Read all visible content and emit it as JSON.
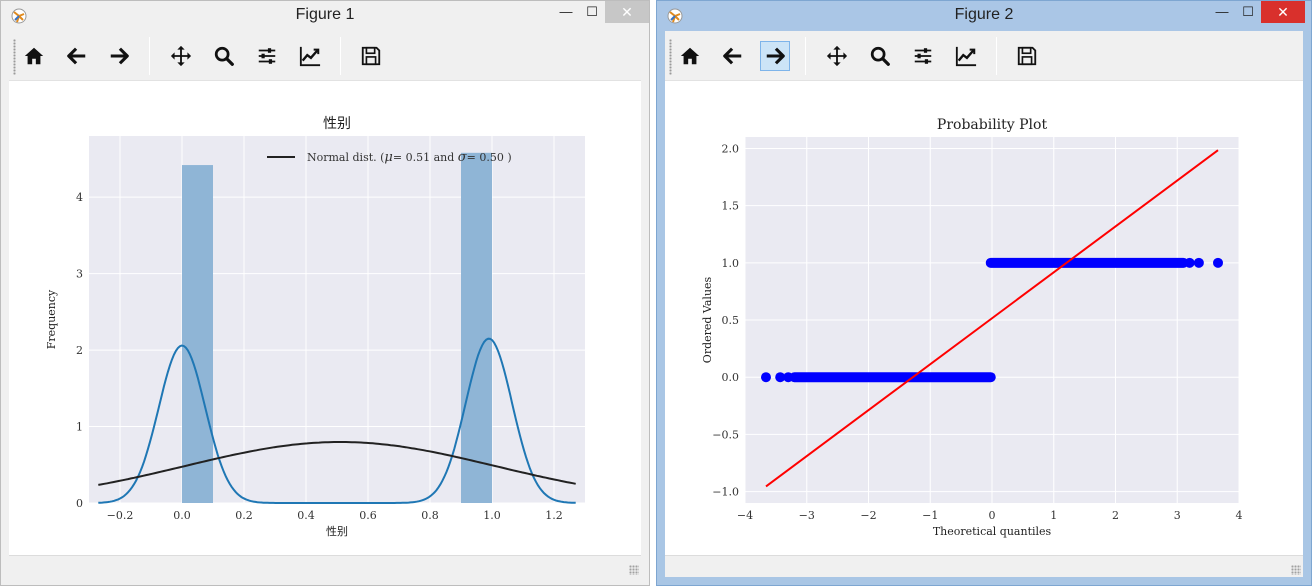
{
  "windows": [
    {
      "title": "Figure 1",
      "minimize": "—",
      "maximize": "☐",
      "close": "✕",
      "toolbar": [
        "home-icon",
        "back-arrow-icon",
        "forward-arrow-icon",
        "move-icon",
        "zoom-icon",
        "configure-subplots-icon",
        "edit-axes-icon",
        "save-icon"
      ],
      "active_tool": null
    },
    {
      "title": "Figure 2",
      "minimize": "—",
      "maximize": "☐",
      "close": "✕",
      "toolbar": [
        "home-icon",
        "back-arrow-icon",
        "forward-arrow-icon",
        "move-icon",
        "zoom-icon",
        "configure-subplots-icon",
        "edit-axes-icon",
        "save-icon"
      ],
      "active_tool": "forward-arrow-icon"
    }
  ],
  "chart_data": [
    {
      "type": "bar",
      "title": "性别",
      "xlabel": "性别",
      "ylabel": "Frequency",
      "xlim": [
        -0.3,
        1.3
      ],
      "ylim": [
        0,
        4.8
      ],
      "xticks": [
        -0.2,
        0.0,
        0.2,
        0.4,
        0.6,
        0.8,
        1.0,
        1.2
      ],
      "xtick_labels": [
        "−0.2",
        "0.0",
        "0.2",
        "0.4",
        "0.6",
        "0.8",
        "1.0",
        "1.2"
      ],
      "yticks": [
        0,
        1,
        2,
        3,
        4
      ],
      "ytick_labels": [
        "0",
        "1",
        "2",
        "3",
        "4"
      ],
      "grid": true,
      "legend": {
        "position": "top-right",
        "entries": [
          {
            "prefix": "Normal dist. (",
            "mu_sym": "μ",
            "eq1": "= 0.51 and ",
            "sigma_sym": "σ",
            "eq2": "= 0.50 )",
            "color": "#222222"
          }
        ]
      },
      "hist_bars": [
        {
          "x0": 0.0,
          "x1": 0.1,
          "height": 4.42
        },
        {
          "x0": 0.9,
          "x1": 1.0,
          "height": 4.58
        }
      ],
      "bar_color": "#8fb5d6",
      "kde": {
        "color": "#1f77b4",
        "components": [
          {
            "center": 0.0,
            "height": 2.06,
            "sigma": 0.075
          },
          {
            "center": 0.99,
            "height": 2.15,
            "sigma": 0.075
          }
        ],
        "x_range": [
          -0.27,
          1.27
        ]
      },
      "normal_fit": {
        "mu": 0.51,
        "sigma": 0.5,
        "color": "#222222",
        "x_range": [
          -0.27,
          1.27
        ]
      }
    },
    {
      "type": "scatter",
      "title": "Probability Plot",
      "xlabel": "Theoretical quantiles",
      "ylabel": "Ordered Values",
      "xlim": [
        -4,
        4
      ],
      "ylim": [
        -1.1,
        2.1
      ],
      "xticks": [
        -4,
        -3,
        -2,
        -1,
        0,
        1,
        2,
        3,
        4
      ],
      "xtick_labels": [
        "−4",
        "−3",
        "−2",
        "−1",
        "0",
        "1",
        "2",
        "3",
        "4"
      ],
      "yticks": [
        -1.0,
        -0.5,
        0.0,
        0.5,
        1.0,
        1.5,
        2.0
      ],
      "ytick_labels": [
        "−1.0",
        "−0.5",
        "0.0",
        "0.5",
        "1.0",
        "1.5",
        "2.0"
      ],
      "grid": true,
      "point_color": "#0000ff",
      "line_color": "#ff0000",
      "dense_segments": [
        {
          "x0": -3.2,
          "x1": -0.02,
          "y": 0.0
        },
        {
          "x0": -0.02,
          "x1": 3.1,
          "y": 1.0
        }
      ],
      "outlier_points": [
        {
          "x": -3.66,
          "y": 0.0
        },
        {
          "x": -3.43,
          "y": 0.0
        },
        {
          "x": -3.3,
          "y": 0.0
        },
        {
          "x": 3.2,
          "y": 1.0
        },
        {
          "x": 3.35,
          "y": 1.0
        },
        {
          "x": 3.66,
          "y": 1.0
        }
      ],
      "fit_line": {
        "x0": -3.66,
        "y0": -0.955,
        "x1": 3.66,
        "y1": 1.985
      }
    }
  ]
}
